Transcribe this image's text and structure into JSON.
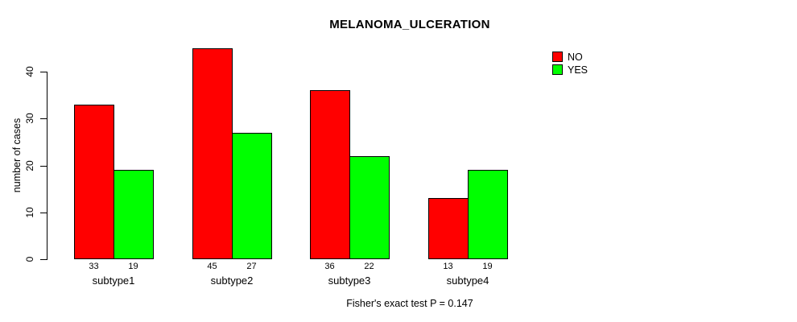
{
  "chart_data": {
    "type": "bar",
    "title": "MELANOMA_ULCERATION",
    "ylabel": "number of cases",
    "xlabel": "",
    "categories": [
      "subtype1",
      "subtype2",
      "subtype3",
      "subtype4"
    ],
    "series": [
      {
        "name": "NO",
        "color": "#FF0000",
        "values": [
          33,
          45,
          36,
          13
        ]
      },
      {
        "name": "YES",
        "color": "#00FF00",
        "values": [
          19,
          27,
          22,
          19
        ]
      }
    ],
    "yticks": [
      0,
      10,
      20,
      30,
      40
    ],
    "ylim": [
      0,
      45
    ],
    "grid": false,
    "legend_position": "top-right",
    "bar_value_labels": true,
    "annotation": "Fisher's exact test P = 0.147",
    "colors": {
      "background": "#FFFFFF",
      "axis": "#000000",
      "text": "#000000",
      "bar_border": "#000000"
    }
  }
}
